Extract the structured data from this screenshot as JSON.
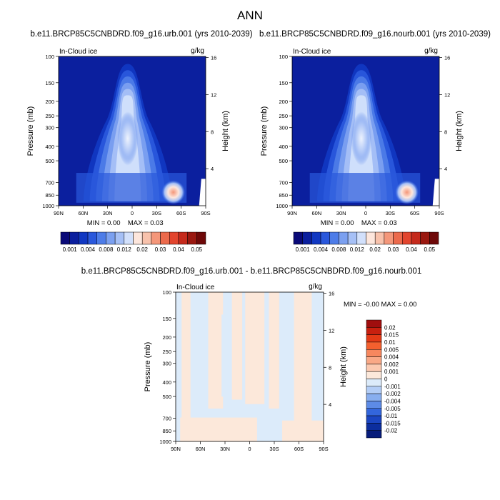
{
  "page": {
    "title": "ANN"
  },
  "colorbar_main": {
    "labels": [
      "0.001",
      "0.004",
      "0.008",
      "0.012",
      "0.02",
      "0.03",
      "0.04",
      "0.05"
    ],
    "colors": [
      "#0a0a78",
      "#0b1f9e",
      "#1138c2",
      "#2a58dc",
      "#4d7ce8",
      "#7ba0f0",
      "#a6c0f6",
      "#d2e0fb",
      "#fde6dc",
      "#f8c2ac",
      "#f4977a",
      "#ec6a4c",
      "#e2452e",
      "#c52a1c",
      "#9a1810",
      "#6e0808"
    ]
  },
  "colorbar_diff": {
    "labels": [
      "0.02",
      "0.015",
      "0.01",
      "0.005",
      "0.004",
      "0.002",
      "0.001",
      "0",
      "-0.001",
      "-0.002",
      "-0.004",
      "-0.005",
      "-0.01",
      "-0.015",
      "-0.02"
    ],
    "colors": [
      "#a00e0e",
      "#c8200f",
      "#e43a16",
      "#f4602e",
      "#f7875e",
      "#f9a886",
      "#fbc9b0",
      "#fce8da",
      "#dcebfa",
      "#b3cdf6",
      "#88aeef",
      "#5d8be6",
      "#3366dc",
      "#1b46c2",
      "#0c2e9e",
      "#071c7a"
    ]
  },
  "chart_data": [
    {
      "type": "heatmap",
      "title": "b.e11.BRCP85C5CNBDRD.f09_g16.urb.001 (yrs 2010-2039)",
      "variable": "In-Cloud ice",
      "units": "g/kg",
      "ylabel": "Pressure (mb)",
      "ylabel_right": "Height (km)",
      "x_ticks": [
        "90N",
        "60N",
        "30N",
        "0",
        "30S",
        "60S",
        "90S"
      ],
      "y_ticks": [
        "100",
        "150",
        "200",
        "250",
        "300",
        "400",
        "500",
        "700",
        "850",
        "1000"
      ],
      "y_right_ticks": [
        "16",
        "12",
        "8",
        "4"
      ],
      "min_label": "MIN =   0.00",
      "max_label": "MAX =   0.03",
      "min": 0.0,
      "max": 0.03
    },
    {
      "type": "heatmap",
      "title": "b.e11.BRCP85C5CNBDRD.f09_g16.nourb.001 (yrs 2010-2039)",
      "variable": "In-Cloud ice",
      "units": "g/kg",
      "ylabel": "Pressure (mb)",
      "ylabel_right": "Height (km)",
      "x_ticks": [
        "90N",
        "60N",
        "30N",
        "0",
        "30S",
        "60S",
        "90S"
      ],
      "y_ticks": [
        "100",
        "150",
        "200",
        "250",
        "300",
        "400",
        "500",
        "700",
        "850",
        "1000"
      ],
      "y_right_ticks": [
        "16",
        "12",
        "8",
        "4"
      ],
      "min_label": "MIN =   0.00",
      "max_label": "MAX =   0.03",
      "min": 0.0,
      "max": 0.03
    },
    {
      "type": "heatmap",
      "title": "b.e11.BRCP85C5CNBDRD.f09_g16.urb.001 - b.e11.BRCP85C5CNBDRD.f09_g16.nourb.001",
      "variable": "In-Cloud ice",
      "units": "g/kg",
      "ylabel": "Pressure (mb)",
      "ylabel_right": "Height (km)",
      "x_ticks": [
        "90N",
        "60N",
        "30N",
        "0",
        "30S",
        "60S",
        "90S"
      ],
      "y_ticks": [
        "100",
        "150",
        "200",
        "250",
        "300",
        "400",
        "500",
        "700",
        "850",
        "1000"
      ],
      "y_right_ticks": [
        "16",
        "12",
        "8",
        "4"
      ],
      "minmax_label": "MIN =  -0.00   MAX =   0.00",
      "min": -0.0,
      "max": 0.0
    }
  ]
}
